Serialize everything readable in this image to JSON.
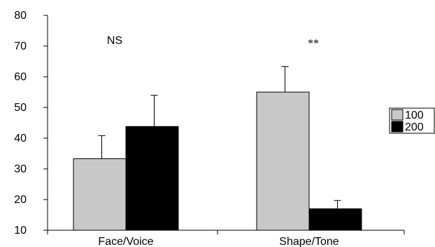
{
  "chart_data": {
    "type": "bar",
    "title": "",
    "xlabel": "",
    "ylabel": "",
    "ylim": [
      10,
      80
    ],
    "yticks": [
      10,
      20,
      30,
      40,
      50,
      60,
      70,
      80
    ],
    "grid": false,
    "legend_position": "right",
    "categories": [
      "Face/Voice",
      "Shape/Tone"
    ],
    "series": [
      {
        "name": "100",
        "color": "#c8c8c8",
        "values": [
          33.3,
          55.0
        ],
        "errors": [
          7.5,
          8.3
        ]
      },
      {
        "name": "200",
        "color": "#000000",
        "values": [
          43.8,
          17.0
        ],
        "errors": [
          10.2,
          2.7
        ]
      }
    ],
    "annotations": [
      {
        "category": "Face/Voice",
        "text": "NS"
      },
      {
        "category": "Shape/Tone",
        "text": "**"
      }
    ]
  }
}
